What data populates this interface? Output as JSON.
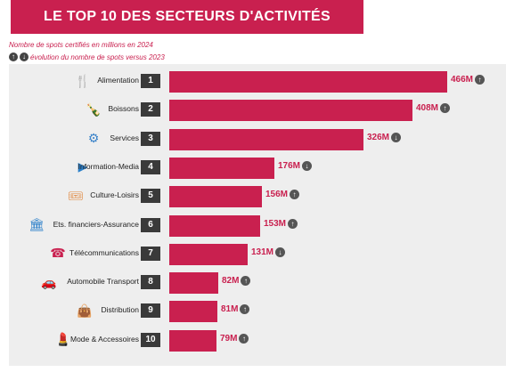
{
  "header": {
    "title": "LE TOP 10 DES SECTEURS D'ACTIVITÉS"
  },
  "notes": {
    "line1": "Nombre de spots certifiés en millions en 2024",
    "line2": "évolution du nombre de spots versus 2023"
  },
  "colors": {
    "accent": "#c9204f",
    "rank_box": "#3a3a3a",
    "panel_bg": "#eeeeee",
    "trend_icon": "#555555"
  },
  "chart_data": {
    "type": "bar",
    "orientation": "horizontal",
    "value_unit": "M",
    "categories": [
      "Alimentation",
      "Boissons",
      "Services",
      "Information-Media",
      "Culture-Loisirs",
      "Ets. financiers-Assurance",
      "Télécommunications",
      "Automobile Transport",
      "Distribution",
      "Mode & Accessoires"
    ],
    "ranks": [
      "1",
      "2",
      "3",
      "4",
      "5",
      "6",
      "7",
      "8",
      "9",
      "10"
    ],
    "values": [
      466,
      408,
      326,
      176,
      156,
      153,
      131,
      82,
      81,
      79
    ],
    "value_labels": [
      "466M",
      "408M",
      "326M",
      "176M",
      "156M",
      "153M",
      "131M",
      "82M",
      "81M",
      "79M"
    ],
    "trend": [
      "up",
      "up",
      "down",
      "down",
      "up",
      "up",
      "down",
      "up",
      "up",
      "up"
    ],
    "icons": [
      "cutlery-icon",
      "bottle-icon",
      "gears-icon",
      "play-icon",
      "ticket-icon",
      "bank-icon",
      "phone-icon",
      "car-icon",
      "bag-icon",
      "lipstick-icon"
    ]
  }
}
